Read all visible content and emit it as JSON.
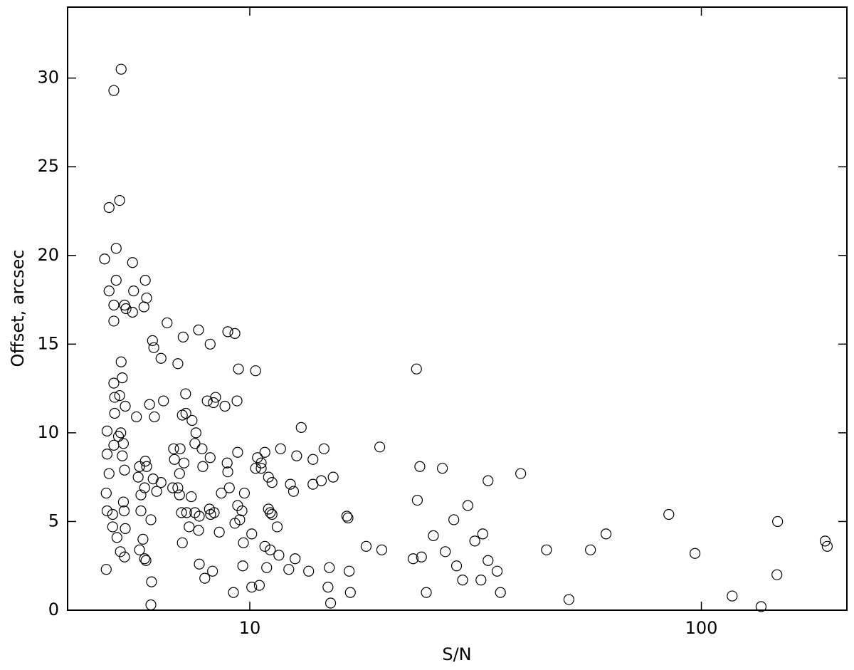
{
  "chart_data": {
    "type": "scatter",
    "xlabel": "S/N",
    "ylabel": "Offset, arcsec",
    "xscale": "log",
    "xlim": [
      3.95,
      210
    ],
    "ylim": [
      0,
      34
    ],
    "xticks": [
      10,
      100
    ],
    "yticks": [
      0,
      5,
      10,
      15,
      20,
      25,
      30
    ],
    "marker_color": "#000000",
    "marker_fill": "none",
    "x": [
      5.19,
      5.0,
      5.15,
      4.88,
      5.06,
      4.77,
      5.5,
      5.06,
      5.87,
      4.88,
      5.53,
      5.91,
      5.0,
      5.28,
      5.83,
      5.32,
      5.5,
      5.0,
      6.56,
      7.7,
      8.94,
      9.27,
      7.12,
      6.09,
      8.17,
      6.13,
      6.36,
      5.19,
      6.93,
      9.44,
      10.3,
      23.4,
      5.22,
      5.0,
      5.02,
      5.15,
      7.21,
      8.4,
      8.05,
      9.37,
      8.31,
      6.44,
      6.0,
      8.81,
      5.3,
      5.02,
      7.22,
      7.09,
      6.15,
      5.61,
      7.45,
      13.0,
      4.83,
      5.18,
      7.6,
      5.12,
      5.25,
      7.56,
      5.0,
      19.4,
      14.6,
      6.78,
      7.01,
      11.7,
      7.84,
      9.4,
      10.8,
      4.83,
      5.22,
      12.7,
      13.8,
      6.81,
      8.17,
      10.4,
      5.87,
      10.6,
      8.91,
      7.15,
      5.7,
      23.8,
      5.91,
      7.87,
      26.7,
      10.3,
      10.6,
      5.28,
      8.94,
      4.88,
      6.99,
      39.8,
      11.0,
      5.66,
      15.3,
      14.4,
      6.11,
      33.7,
      6.36,
      11.2,
      13.8,
      12.3,
      5.85,
      6.93,
      9.01,
      6.75,
      12.5,
      6.22,
      4.81,
      8.65,
      9.73,
      5.74,
      6.99,
      7.42,
      23.5,
      5.25,
      30.4,
      9.4,
      8.14,
      11.0,
      4.83,
      5.74,
      5.27,
      9.61,
      7.25,
      7.06,
      7.56,
      11.1,
      8.34,
      8.19,
      11.2,
      84.7,
      4.97,
      16.4,
      7.73,
      16.5,
      6.04,
      9.5,
      9.27,
      147.5,
      28.3,
      7.34,
      11.5,
      4.97,
      7.7,
      5.3,
      8.56,
      32.8,
      61.5,
      10.1,
      25.5,
      5.8,
      5.08,
      188,
      31.5,
      7.09,
      9.68,
      10.8,
      190,
      18.1,
      19.6,
      11.1,
      56.8,
      45.4,
      5.17,
      5.7,
      27.1,
      96.8,
      11.6,
      5.28,
      12.6,
      24.0,
      23.0,
      5.85,
      33.7,
      5.89,
      7.73,
      9.65,
      10.9,
      28.7,
      15.0,
      4.81,
      12.2,
      8.27,
      16.6,
      13.5,
      35.3,
      147,
      7.95,
      29.6,
      32.5,
      6.06,
      10.5,
      10.1,
      14.9,
      35.9,
      24.6,
      16.7,
      9.2,
      117,
      50.9,
      15.1,
      6.04,
      135.6
    ],
    "values": [
      30.5,
      29.3,
      23.1,
      22.7,
      20.4,
      19.8,
      19.6,
      18.6,
      18.6,
      18.0,
      18.0,
      17.6,
      17.2,
      17.2,
      17.1,
      17.0,
      16.8,
      16.3,
      16.2,
      15.8,
      15.7,
      15.6,
      15.4,
      15.2,
      15.0,
      14.8,
      14.2,
      14.0,
      13.9,
      13.6,
      13.5,
      13.6,
      13.1,
      12.8,
      12.0,
      12.1,
      12.2,
      12.0,
      11.8,
      11.8,
      11.7,
      11.8,
      11.6,
      11.5,
      11.5,
      11.1,
      11.1,
      11.0,
      10.9,
      10.9,
      10.7,
      10.3,
      10.1,
      10.0,
      10.0,
      9.8,
      9.4,
      9.4,
      9.3,
      9.2,
      9.1,
      9.1,
      9.1,
      9.1,
      9.1,
      8.9,
      8.9,
      8.8,
      8.7,
      8.7,
      8.5,
      8.5,
      8.6,
      8.6,
      8.4,
      8.3,
      8.3,
      8.3,
      8.1,
      8.1,
      8.1,
      8.1,
      8.0,
      8.0,
      8.0,
      7.9,
      7.8,
      7.7,
      7.7,
      7.7,
      7.5,
      7.5,
      7.5,
      7.3,
      7.4,
      7.3,
      7.2,
      7.2,
      7.1,
      7.1,
      6.9,
      6.9,
      6.9,
      6.9,
      6.7,
      6.7,
      6.6,
      6.6,
      6.6,
      6.5,
      6.5,
      6.4,
      6.2,
      6.1,
      5.9,
      5.9,
      5.7,
      5.7,
      5.6,
      5.6,
      5.6,
      5.6,
      5.5,
      5.5,
      5.5,
      5.5,
      5.5,
      5.4,
      5.4,
      5.4,
      5.4,
      5.3,
      5.3,
      5.2,
      5.1,
      5.1,
      4.9,
      5.0,
      5.1,
      4.7,
      4.7,
      4.7,
      4.5,
      4.6,
      4.4,
      4.3,
      4.3,
      4.3,
      4.2,
      4.0,
      4.1,
      3.9,
      3.9,
      3.8,
      3.8,
      3.6,
      3.6,
      3.6,
      3.4,
      3.4,
      3.4,
      3.4,
      3.3,
      3.4,
      3.3,
      3.2,
      3.1,
      3.0,
      2.9,
      3.0,
      2.9,
      2.9,
      2.8,
      2.8,
      2.6,
      2.5,
      2.4,
      2.5,
      2.4,
      2.3,
      2.3,
      2.2,
      2.2,
      2.2,
      2.2,
      2.0,
      1.8,
      1.7,
      1.7,
      1.6,
      1.4,
      1.3,
      1.3,
      1.0,
      1.0,
      1.0,
      1.0,
      0.8,
      0.6,
      0.4,
      0.3,
      0.2
    ]
  }
}
